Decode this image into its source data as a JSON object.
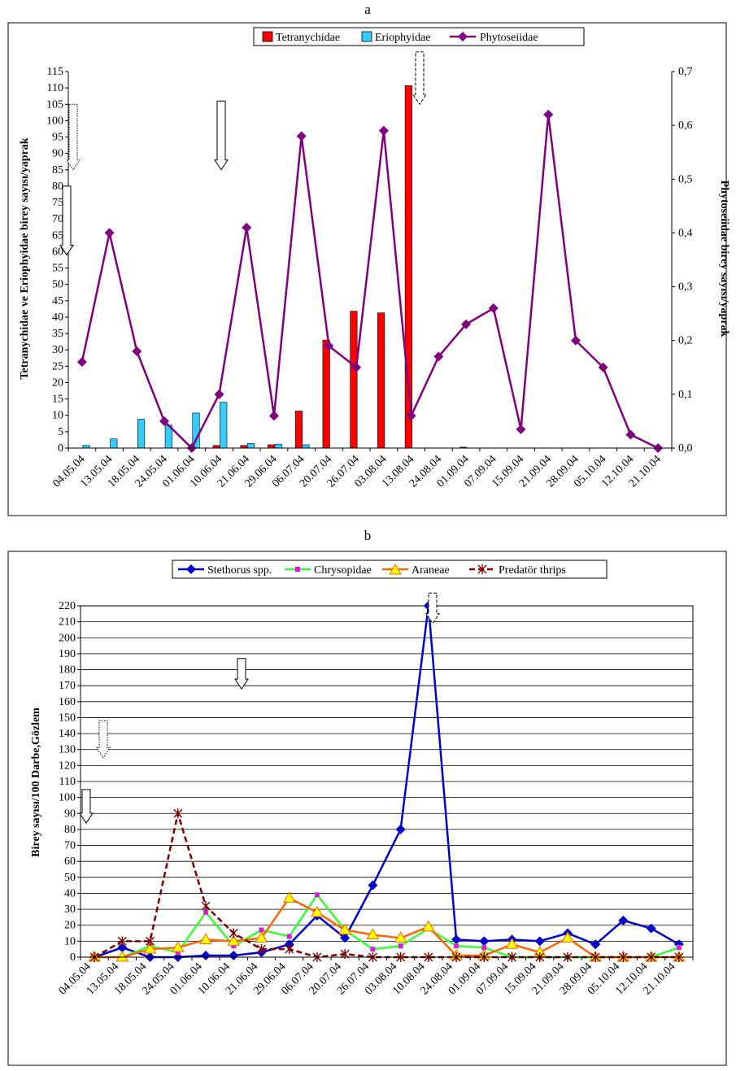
{
  "figure": {
    "panel_a_label": "a",
    "panel_b_label": "b"
  },
  "chart_data": [
    {
      "type": "bar",
      "panel": "a",
      "title": "",
      "categories": [
        "04.05.04",
        "13.05.04",
        "18.05.04",
        "24.05.04",
        "01.06.04",
        "10.06.04",
        "21.06.04",
        "29.06.04",
        "06.07.04",
        "20.07.04",
        "26.07.04",
        "03.08.04",
        "13.08.04",
        "24.08.04",
        "01.09.04",
        "07.09.04",
        "15.09.04",
        "21.09.04",
        "28.09.04",
        "05.10.04",
        "12.10.04",
        "21.10.04"
      ],
      "ylabel": "Tetranychidae ve Eriophyidae birey sayısı/yaprak",
      "y2label": "Phytoseiidae birey sayısı/yaprak",
      "ylim": [
        0,
        115
      ],
      "yticks": [
        "0",
        "5",
        "10",
        "15",
        "20",
        "25",
        "30",
        "35",
        "40",
        "45",
        "50",
        "55",
        "60",
        "65",
        "70",
        "75",
        "80",
        "85",
        "90",
        "95",
        "100",
        "105",
        "110",
        "115"
      ],
      "y2lim": [
        0,
        0.7
      ],
      "y2ticks": [
        "0,0",
        "0,1",
        "0,2",
        "0,3",
        "0,4",
        "0,5",
        "0,6",
        "0,7"
      ],
      "legend_position": "top-center",
      "series": [
        {
          "name": "Tetranychidae",
          "kind": "bar",
          "axis": "left",
          "color": "#ff0000",
          "values": [
            0,
            0,
            0,
            0,
            0,
            0.8,
            0.8,
            1,
            11.3,
            33,
            41.8,
            41.3,
            110.7,
            0,
            0.3,
            0,
            0,
            0,
            0,
            0,
            0,
            0
          ]
        },
        {
          "name": "Eriophyidae",
          "kind": "bar",
          "axis": "left",
          "color": "#33ccff",
          "values": [
            0.8,
            2.8,
            8.8,
            7,
            10.7,
            14,
            1.4,
            1.2,
            1,
            0,
            0,
            0,
            0,
            0,
            0,
            0,
            0,
            0,
            0,
            0,
            0,
            0
          ]
        },
        {
          "name": "Phytoseiidae",
          "kind": "line",
          "axis": "right",
          "color": "#800080",
          "marker": "diamond",
          "values": [
            0.16,
            0.4,
            0.18,
            0.05,
            0,
            0.1,
            0.41,
            0.06,
            0.58,
            0.19,
            0.15,
            0.59,
            0.06,
            0.17,
            0.23,
            0.26,
            0.035,
            0.62,
            0.2,
            0.15,
            0.025,
            0
          ]
        }
      ],
      "annotations": [
        {
          "type": "arrow-down",
          "style": "dotted",
          "y_top": 105,
          "y_bottom": 85
        },
        {
          "type": "arrow-down",
          "style": "solid",
          "y_top": 80,
          "y_bottom": 59
        },
        {
          "type": "arrow-down",
          "style": "solid",
          "y_top": 106,
          "y_bottom": 85
        },
        {
          "type": "arrow-down",
          "style": "dashed",
          "y_top": 121,
          "y_bottom": 105
        }
      ]
    },
    {
      "type": "line",
      "panel": "b",
      "title": "",
      "categories": [
        "04.05.04",
        "13.05.04",
        "18.05.04",
        "24.05.04",
        "01.06.04",
        "10.06.04",
        "21.06.04",
        "29.06.04",
        "06.07.04",
        "20.07.04",
        "26.07.04",
        "03.08.04",
        "10.08.04",
        "24.08.04",
        "01.09.04",
        "07.09.04",
        "15.09.04",
        "21.09.04",
        "28.09.04",
        "05.10.04",
        "12.10.04",
        "21.10.04"
      ],
      "ylabel": "Birey sayısı/100 Darbe,Gözlem",
      "ylim": [
        0,
        220
      ],
      "yticks": [
        "0",
        "10",
        "20",
        "30",
        "40",
        "50",
        "60",
        "70",
        "80",
        "90",
        "100",
        "110",
        "120",
        "130",
        "140",
        "150",
        "160",
        "170",
        "180",
        "190",
        "200",
        "210",
        "220"
      ],
      "legend_position": "top-center",
      "series": [
        {
          "name": "Stethorus spp.",
          "color": "#0000cc",
          "marker": "diamond",
          "values": [
            0,
            6,
            0,
            0,
            1,
            1,
            3,
            8,
            26,
            12,
            45,
            80,
            220,
            11,
            10,
            11,
            10,
            15,
            8,
            23,
            18,
            8
          ]
        },
        {
          "name": "Chrysopidae",
          "color": "#33ff33",
          "marker": "square",
          "values": [
            0,
            0,
            7,
            3,
            28,
            7,
            17,
            13,
            39,
            17,
            5,
            7,
            18,
            7,
            6,
            0,
            0,
            0,
            0,
            0,
            0,
            6
          ]
        },
        {
          "name": "Araneae",
          "color": "#ff6600",
          "marker": "triangle",
          "values": [
            0,
            0,
            5,
            6,
            11,
            10,
            12,
            37,
            28,
            17,
            14,
            12,
            19,
            1,
            1,
            8,
            3,
            12,
            0,
            0,
            0,
            0
          ]
        },
        {
          "name": "Predatör thrips",
          "color": "#800000",
          "marker": "x",
          "values": [
            0,
            10,
            10,
            90,
            32,
            15,
            5,
            5,
            0,
            2,
            0,
            0,
            0,
            0,
            0,
            0,
            0,
            0,
            0,
            0,
            0,
            0
          ]
        }
      ],
      "annotations": [
        {
          "type": "arrow-down",
          "style": "dotted",
          "y_top": 148,
          "y_bottom": 125
        },
        {
          "type": "arrow-down",
          "style": "solid",
          "y_top": 105,
          "y_bottom": 84
        },
        {
          "type": "arrow-down",
          "style": "solid",
          "y_top": 187,
          "y_bottom": 168
        },
        {
          "type": "arrow-down",
          "style": "dashed",
          "y_top": 228,
          "y_bottom": 209
        }
      ]
    }
  ]
}
